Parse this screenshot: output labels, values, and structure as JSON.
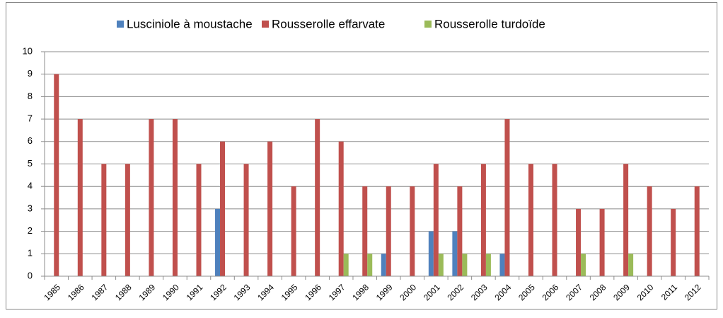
{
  "chart_data": {
    "type": "bar",
    "categories": [
      "1985",
      "1986",
      "1987",
      "1988",
      "1989",
      "1990",
      "1991",
      "1992",
      "1993",
      "1994",
      "1995",
      "1996",
      "1997",
      "1998",
      "1999",
      "2000",
      "2001",
      "2002",
      "2003",
      "2004",
      "2005",
      "2006",
      "2007",
      "2008",
      "2009",
      "2010",
      "2011",
      "2012"
    ],
    "series": [
      {
        "name": "Lusciniole à moustache",
        "color": "#4f81bd",
        "values": [
          0,
          0,
          0,
          0,
          0,
          0,
          0,
          3,
          0,
          0,
          0,
          0,
          0,
          0,
          1,
          0,
          2,
          2,
          0,
          1,
          0,
          0,
          0,
          0,
          0,
          0,
          0,
          0
        ]
      },
      {
        "name": "Rousserolle effarvate",
        "color": "#c0504d",
        "values": [
          9,
          7,
          5,
          5,
          7,
          7,
          5,
          6,
          5,
          6,
          4,
          7,
          6,
          4,
          4,
          4,
          5,
          4,
          5,
          7,
          5,
          5,
          3,
          3,
          5,
          4,
          3,
          4
        ]
      },
      {
        "name": "Rousserolle turdoïde",
        "color": "#9bbb59",
        "values": [
          0,
          0,
          0,
          0,
          0,
          0,
          0,
          0,
          0,
          0,
          0,
          0,
          1,
          1,
          0,
          0,
          1,
          1,
          1,
          0,
          0,
          0,
          1,
          0,
          1,
          0,
          0,
          0
        ]
      }
    ],
    "ylim": [
      0,
      10
    ],
    "yticks": [
      0,
      1,
      2,
      3,
      4,
      5,
      6,
      7,
      8,
      9,
      10
    ],
    "grid": true,
    "legend": "top"
  }
}
